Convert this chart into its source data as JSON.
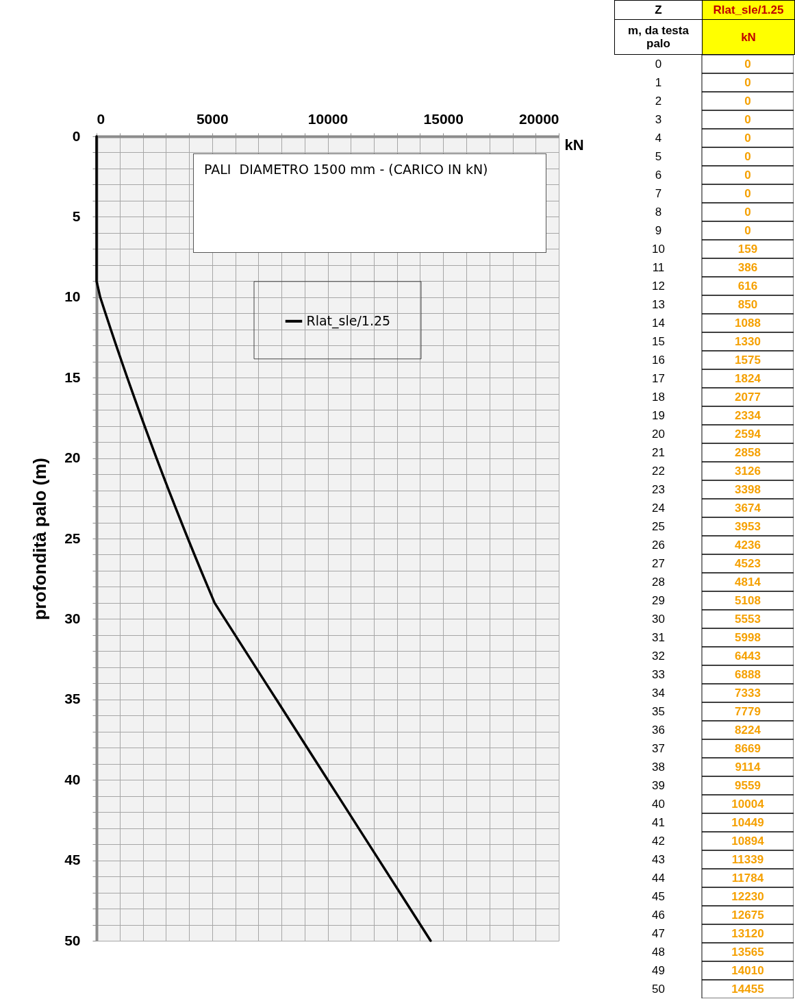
{
  "chart_data": [
    {
      "type": "line",
      "xlabel": "kN",
      "ylabel": "profondità palo (m)",
      "annotations": [
        "PALI  DIAMETRO 1500 mm - (CARICO IN kN)"
      ],
      "series": [
        {
          "name": "Rlat_sle/1.25",
          "color": "#000000",
          "x": [
            0,
            0,
            0,
            0,
            0,
            0,
            0,
            0,
            0,
            0,
            159,
            386,
            616,
            850,
            1088,
            1330,
            1575,
            1824,
            2077,
            2334,
            2594,
            2858,
            3126,
            3398,
            3674,
            3953,
            4236,
            4523,
            4814,
            5108,
            5553,
            5998,
            6443,
            6888,
            7333,
            7779,
            8224,
            8669,
            9114,
            9559,
            10004,
            10449,
            10894,
            11339,
            11784,
            12230,
            12675,
            13120,
            13565,
            14010,
            14455
          ],
          "values": [
            0,
            1,
            2,
            3,
            4,
            5,
            6,
            7,
            8,
            9,
            10,
            11,
            12,
            13,
            14,
            15,
            16,
            17,
            18,
            19,
            20,
            21,
            22,
            23,
            24,
            25,
            26,
            27,
            28,
            29,
            30,
            31,
            32,
            33,
            34,
            35,
            36,
            37,
            38,
            39,
            40,
            41,
            42,
            43,
            44,
            45,
            46,
            47,
            48,
            49,
            50
          ]
        }
      ],
      "xlim": [
        0,
        20000
      ],
      "xticks": [
        0,
        {
          "value": 1000,
          "label": null
        },
        {
          "value": 2000,
          "label": null
        },
        {
          "value": 3000,
          "label": null
        },
        {
          "value": 4000,
          "label": null
        },
        5000,
        {
          "value": 6000,
          "label": null
        },
        {
          "value": 7000,
          "label": null
        },
        {
          "value": 8000,
          "label": null
        },
        {
          "value": 9000,
          "label": null
        },
        10000,
        {
          "value": 11000,
          "label": null
        },
        {
          "value": 12000,
          "label": null
        },
        {
          "value": 13000,
          "label": null
        },
        {
          "value": 14000,
          "label": null
        },
        15000,
        {
          "value": 16000,
          "label": null
        },
        {
          "value": 17000,
          "label": null
        },
        {
          "value": 18000,
          "label": null
        },
        {
          "value": 19000,
          "label": null
        },
        20000
      ],
      "ylim": [
        50,
        0
      ],
      "yticks": [
        0,
        {
          "value": 1,
          "label": null
        },
        {
          "value": 2,
          "label": null
        },
        {
          "value": 3,
          "label": null
        },
        {
          "value": 4,
          "label": null
        },
        5,
        {
          "value": 6,
          "label": null
        },
        {
          "value": 7,
          "label": null
        },
        {
          "value": 8,
          "label": null
        },
        {
          "value": 9,
          "label": null
        },
        10,
        {
          "value": 11,
          "label": null
        },
        {
          "value": 12,
          "label": null
        },
        {
          "value": 13,
          "label": null
        },
        {
          "value": 14,
          "label": null
        },
        15,
        {
          "value": 16,
          "label": null
        },
        {
          "value": 17,
          "label": null
        },
        {
          "value": 18,
          "label": null
        },
        {
          "value": 19,
          "label": null
        },
        20,
        {
          "value": 21,
          "label": null
        },
        {
          "value": 22,
          "label": null
        },
        {
          "value": 23,
          "label": null
        },
        {
          "value": 24,
          "label": null
        },
        25,
        {
          "value": 26,
          "label": null
        },
        {
          "value": 27,
          "label": null
        },
        {
          "value": 28,
          "label": null
        },
        {
          "value": 29,
          "label": null
        },
        30,
        {
          "value": 31,
          "label": null
        },
        {
          "value": 32,
          "label": null
        },
        {
          "value": 33,
          "label": null
        },
        {
          "value": 34,
          "label": null
        },
        35,
        {
          "value": 36,
          "label": null
        },
        {
          "value": 37,
          "label": null
        },
        {
          "value": 38,
          "label": null
        },
        {
          "value": 39,
          "label": null
        },
        40,
        {
          "value": 41,
          "label": null
        },
        {
          "value": 42,
          "label": null
        },
        {
          "value": 43,
          "label": null
        },
        {
          "value": 44,
          "label": null
        },
        45,
        {
          "value": 46,
          "label": null
        },
        {
          "value": 47,
          "label": null
        },
        {
          "value": 48,
          "label": null
        },
        {
          "value": 49,
          "label": null
        },
        50
      ],
      "grid": true,
      "legend": "top right",
      "marker": "none",
      "line_style": "solid"
    },
    {
      "type": "heatmap",
      "data_labels": true,
      "annotations": [
        "Z"
      ],
      "ylabel": "m, da testa palo",
      "xlabel": "kN",
      "categories": [
        "Rlat_sle/1.25"
      ],
      "y_categories": [
        "0",
        "1",
        "2",
        "3",
        "4",
        "5",
        "6",
        "7",
        "8",
        "9",
        "10",
        "11",
        "12",
        "13",
        "14",
        "15",
        "16",
        "17",
        "18",
        "19",
        "20",
        "21",
        "22",
        "23",
        "24",
        "25",
        "26",
        "27",
        "28",
        "29",
        "30",
        "31",
        "32",
        "33",
        "34",
        "35",
        "36",
        "37",
        "38",
        "39",
        "40",
        "41",
        "42",
        "43",
        "44",
        "45",
        "46",
        "47",
        "48",
        "49",
        "50"
      ],
      "cells": [
        [
          0
        ],
        [
          0
        ],
        [
          0
        ],
        [
          0
        ],
        [
          0
        ],
        [
          0
        ],
        [
          0
        ],
        [
          0
        ],
        [
          0
        ],
        [
          0
        ],
        [
          159
        ],
        [
          386
        ],
        [
          616
        ],
        [
          850
        ],
        [
          1088
        ],
        [
          1330
        ],
        [
          1575
        ],
        [
          1824
        ],
        [
          2077
        ],
        [
          2334
        ],
        [
          2594
        ],
        [
          2858
        ],
        [
          3126
        ],
        [
          3398
        ],
        [
          3674
        ],
        [
          3953
        ],
        [
          4236
        ],
        [
          4523
        ],
        [
          4814
        ],
        [
          5108
        ],
        [
          5553
        ],
        [
          5998
        ],
        [
          6443
        ],
        [
          6888
        ],
        [
          7333
        ],
        [
          7779
        ],
        [
          8224
        ],
        [
          8669
        ],
        [
          9114
        ],
        [
          9559
        ],
        [
          10004
        ],
        [
          10449
        ],
        [
          10894
        ],
        [
          11339
        ],
        [
          11784
        ],
        [
          12230
        ],
        [
          12675
        ],
        [
          13120
        ],
        [
          13565
        ],
        [
          14010
        ],
        [
          14455
        ]
      ]
    }
  ]
}
